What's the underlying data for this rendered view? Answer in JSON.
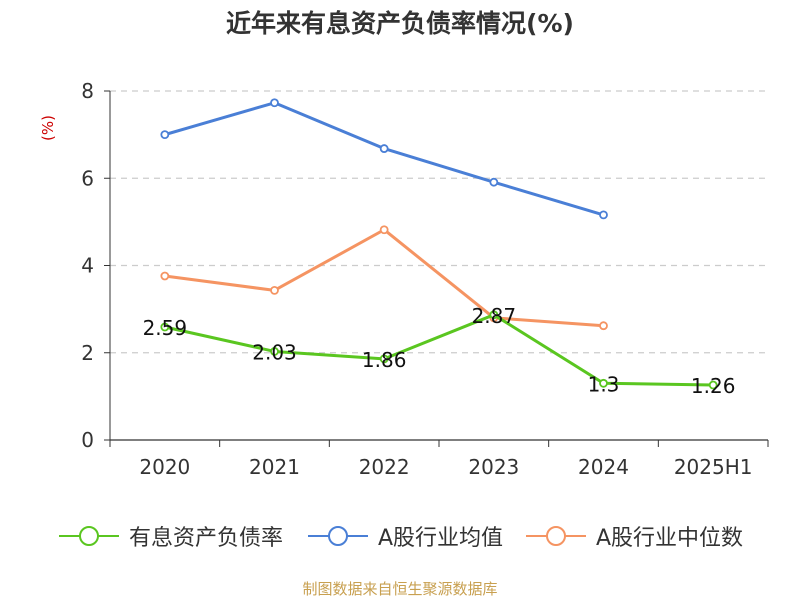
{
  "source": "制图数据来自恒生聚源数据库",
  "chart_data": {
    "type": "line",
    "title": "近年来有息资产负债率情况(%)",
    "ylabel": "(%)",
    "xlabel": "",
    "categories": [
      "2020",
      "2021",
      "2022",
      "2023",
      "2024",
      "2025H1"
    ],
    "ylim": [
      0,
      8
    ],
    "yticks": [
      0,
      2,
      4,
      6,
      8
    ],
    "grid": true,
    "legend_position": "bottom",
    "series": [
      {
        "name": "有息资产负债率",
        "color": "#5ac620",
        "values": [
          2.59,
          2.03,
          1.86,
          2.87,
          1.3,
          1.26
        ],
        "labels": [
          "2.59",
          "2.03",
          "1.86",
          "2.87",
          "1.3",
          "1.26"
        ]
      },
      {
        "name": "A股行业均值",
        "color": "#4a7fd6",
        "values": [
          7.0,
          7.73,
          6.68,
          5.91,
          5.16,
          null
        ]
      },
      {
        "name": "A股行业中位数",
        "color": "#f59462",
        "values": [
          3.76,
          3.43,
          4.82,
          2.8,
          2.62,
          null
        ]
      }
    ]
  }
}
